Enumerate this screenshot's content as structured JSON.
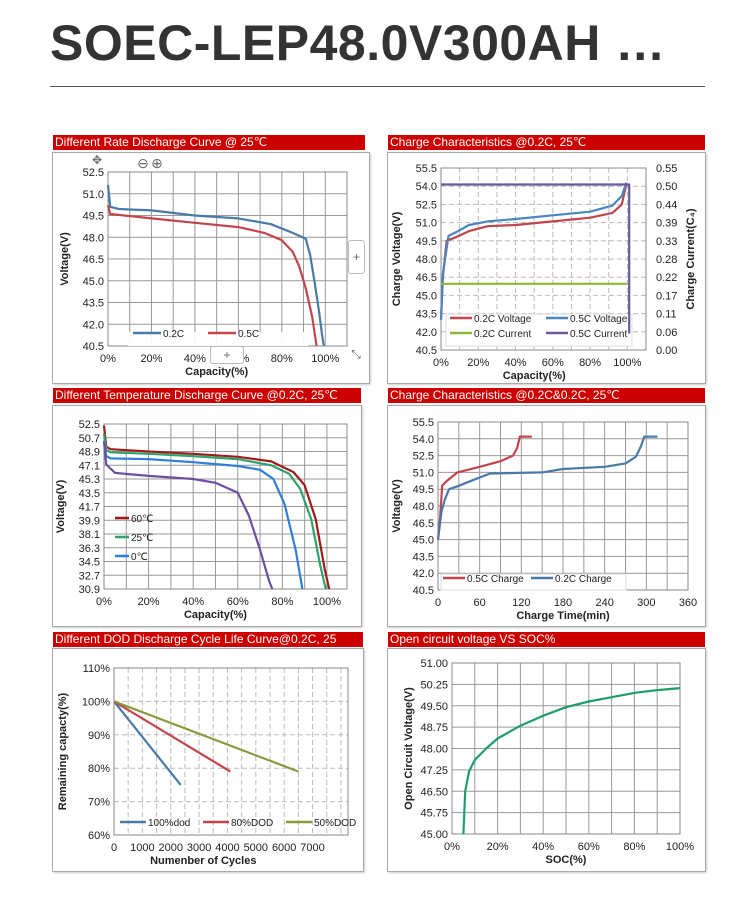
{
  "page_title": "SOEC-LEP48.0V300AH …",
  "panels": [
    {
      "header": "Different Rate Discharge Curve @ 25℃"
    },
    {
      "header": "Charge Characteristics @0.2C, 25℃"
    },
    {
      "header": "Different Temperature Discharge Curve @0.2C, 25℃"
    },
    {
      "header": "Charge Characteristics @0.2C&0.2C, 25℃"
    },
    {
      "header": "Different DOD Discharge Cycle Life Curve@0.2C, 25"
    },
    {
      "header": "Open circuit voltage VS SOC%"
    }
  ],
  "overlay_controls": {
    "zoom_out": "⊖",
    "zoom_in": "⊕",
    "move": "✥",
    "add_right": "+",
    "add_bottom": "+",
    "expand": "⤡"
  },
  "chart_data": [
    {
      "type": "line",
      "title": "Different Rate Discharge Curve @ 25℃",
      "xlabel": "Capacity(%)",
      "ylabel": "Voltage(V)",
      "xlim": [
        0,
        110
      ],
      "ylim": [
        40.5,
        52.5
      ],
      "grid": "solid",
      "xticks": [
        "0%",
        "20%",
        "40%",
        "60%",
        "80%",
        "100%"
      ],
      "xtick_values": [
        0,
        20,
        40,
        60,
        80,
        100
      ],
      "yticks": [
        "40.5",
        "42.0",
        "43.5",
        "45.0",
        "46.5",
        "48.0",
        "49.5",
        "51.0",
        "52.5"
      ],
      "ytick_values": [
        40.5,
        42,
        43.5,
        45,
        46.5,
        48,
        49.5,
        51,
        52.5
      ],
      "legend": "bottom",
      "series": [
        {
          "name": "0.2C",
          "color": "#4a7aa8",
          "points": [
            [
              0,
              51.6
            ],
            [
              1,
              50.1
            ],
            [
              5,
              49.95
            ],
            [
              20,
              49.85
            ],
            [
              40,
              49.5
            ],
            [
              60,
              49.3
            ],
            [
              75,
              48.9
            ],
            [
              85,
              48.3
            ],
            [
              91,
              47.9
            ],
            [
              93,
              46.8
            ],
            [
              95,
              45
            ],
            [
              97,
              43
            ],
            [
              98.5,
              41.3
            ],
            [
              99.3,
              40.5
            ]
          ]
        },
        {
          "name": "0.5C",
          "color": "#c0454d",
          "points": [
            [
              0,
              50.2
            ],
            [
              1,
              49.6
            ],
            [
              20,
              49.3
            ],
            [
              40,
              49.0
            ],
            [
              60,
              48.7
            ],
            [
              72,
              48.3
            ],
            [
              80,
              47.8
            ],
            [
              85,
              47
            ],
            [
              88,
              46
            ],
            [
              91,
              44.5
            ],
            [
              94,
              42.5
            ],
            [
              96,
              40.5
            ]
          ]
        }
      ]
    },
    {
      "type": "line",
      "title": "Charge Characteristics @0.2C, 25℃",
      "xlabel": "Capacity(%)",
      "ylabel": "Charge Voltage(V)",
      "y2label": "Charge Current(C₄)",
      "xlim": [
        0,
        110
      ],
      "ylim": [
        40.5,
        55.5
      ],
      "y2lim": [
        0,
        0.55
      ],
      "grid": "dashed",
      "xticks": [
        "0%",
        "20%",
        "40%",
        "60%",
        "80%",
        "100%"
      ],
      "xtick_values": [
        0,
        20,
        40,
        60,
        80,
        100
      ],
      "yticks": [
        "40.5",
        "42.0",
        "43.5",
        "45.0",
        "46.5",
        "48.0",
        "49.5",
        "51.0",
        "52.5",
        "54.0",
        "55.5"
      ],
      "ytick_values": [
        40.5,
        42,
        43.5,
        45,
        46.5,
        48,
        49.5,
        51,
        52.5,
        54,
        55.5
      ],
      "y2ticks": [
        "0.00",
        "0.06",
        "0.11",
        "0.17",
        "0.22",
        "0.28",
        "0.33",
        "0.39",
        "0.44",
        "0.50",
        "0.55"
      ],
      "y2tick_values": [
        0,
        0.055,
        0.11,
        0.165,
        0.22,
        0.275,
        0.33,
        0.385,
        0.44,
        0.495,
        0.55
      ],
      "legend": "bottom-inside",
      "series": [
        {
          "name": "0.2C Voltage",
          "color": "#c0454d",
          "axis": "left",
          "points": [
            [
              0,
              43
            ],
            [
              1,
              46.5
            ],
            [
              3,
              49.5
            ],
            [
              8,
              49.8
            ],
            [
              15,
              50.3
            ],
            [
              25,
              50.7
            ],
            [
              40,
              50.8
            ],
            [
              60,
              51.1
            ],
            [
              80,
              51.4
            ],
            [
              92,
              51.8
            ],
            [
              97,
              52.5
            ],
            [
              99.5,
              54.2
            ]
          ]
        },
        {
          "name": "0.5C Voltage",
          "color": "#4a86c0",
          "axis": "left",
          "points": [
            [
              0,
              43
            ],
            [
              1,
              46.8
            ],
            [
              4,
              49.9
            ],
            [
              8,
              50.2
            ],
            [
              15,
              50.8
            ],
            [
              25,
              51.1
            ],
            [
              40,
              51.3
            ],
            [
              60,
              51.6
            ],
            [
              80,
              51.9
            ],
            [
              92,
              52.4
            ],
            [
              97,
              53.2
            ],
            [
              99.5,
              54.3
            ]
          ]
        },
        {
          "name": "0.2C Current",
          "color": "#8db83b",
          "axis": "right",
          "points": [
            [
              0,
              0.2
            ],
            [
              100,
              0.2
            ]
          ]
        },
        {
          "name": "0.5C Current",
          "color": "#6a5a9c",
          "axis": "right",
          "points": [
            [
              0,
              0.5
            ],
            [
              101,
              0.5
            ],
            [
              101,
              0.05
            ]
          ]
        }
      ]
    },
    {
      "type": "line",
      "title": "Different Temperature Discharge Curve @0.2C, 25℃",
      "xlabel": "Capacity(%)",
      "ylabel": "Voltage(V)",
      "xlim": [
        0,
        109
      ],
      "ylim": [
        30.9,
        52.5
      ],
      "grid": "solid",
      "xticks": [
        "0%",
        "20%",
        "40%",
        "60%",
        "80%",
        "100%"
      ],
      "xtick_values": [
        0,
        20,
        40,
        60,
        80,
        100
      ],
      "yticks": [
        "30.9",
        "32.7",
        "34.5",
        "36.3",
        "38.1",
        "39.9",
        "41.7",
        "43.5",
        "45.3",
        "47.1",
        "48.9",
        "50.7",
        "52.5"
      ],
      "ytick_values": [
        30.9,
        32.7,
        34.5,
        36.3,
        38.1,
        39.9,
        41.7,
        43.5,
        45.3,
        47.1,
        48.9,
        50.7,
        52.5
      ],
      "legend": "left-inside",
      "series": [
        {
          "name": "60℃",
          "color": "#a01c1c",
          "points": [
            [
              0,
              52.3
            ],
            [
              1,
              49.5
            ],
            [
              3,
              49.2
            ],
            [
              20,
              48.9
            ],
            [
              40,
              48.6
            ],
            [
              60,
              48.2
            ],
            [
              75,
              47.6
            ],
            [
              85,
              46.2
            ],
            [
              90,
              44.5
            ],
            [
              95,
              40
            ],
            [
              99,
              33.5
            ],
            [
              101,
              30.9
            ]
          ]
        },
        {
          "name": "25℃",
          "color": "#2ea36a",
          "points": [
            [
              0,
              51.2
            ],
            [
              1,
              49.1
            ],
            [
              3,
              48.8
            ],
            [
              20,
              48.6
            ],
            [
              40,
              48.3
            ],
            [
              60,
              47.9
            ],
            [
              75,
              47.1
            ],
            [
              83,
              46
            ],
            [
              88,
              44
            ],
            [
              93,
              40
            ],
            [
              97,
              34
            ],
            [
              99.5,
              30.9
            ]
          ]
        },
        {
          "name": "0℃",
          "color": "#2f7ed8",
          "points": [
            [
              0,
              50.3
            ],
            [
              1,
              48.3
            ],
            [
              3,
              48.0
            ],
            [
              20,
              47.9
            ],
            [
              40,
              47.5
            ],
            [
              60,
              47.0
            ],
            [
              70,
              46.5
            ],
            [
              76,
              45.3
            ],
            [
              81,
              42
            ],
            [
              86,
              36
            ],
            [
              89,
              30.9
            ]
          ]
        },
        {
          "color": "#6d4fa0",
          "points": [
            [
              0,
              50.2
            ],
            [
              1,
              47.2
            ],
            [
              5,
              46.1
            ],
            [
              20,
              45.7
            ],
            [
              40,
              45.3
            ],
            [
              50,
              44.8
            ],
            [
              60,
              43.5
            ],
            [
              65,
              40.5
            ],
            [
              70,
              36
            ],
            [
              74,
              32
            ],
            [
              75.5,
              30.9
            ]
          ]
        }
      ]
    },
    {
      "type": "line",
      "title": "Charge Characteristics @0.2C&0.2C, 25℃",
      "xlabel": "Charge Time(min)",
      "ylabel": "Voltage(V)",
      "xlim": [
        0,
        360
      ],
      "ylim": [
        40.5,
        55.5
      ],
      "grid": "solid",
      "xticks": [
        "0",
        "60",
        "120",
        "180",
        "240",
        "300",
        "360"
      ],
      "xtick_values": [
        0,
        60,
        120,
        180,
        240,
        300,
        360
      ],
      "yticks": [
        "40.5",
        "42.0",
        "43.5",
        "45.0",
        "46.5",
        "48.0",
        "49.5",
        "51.0",
        "52.5",
        "54.0",
        "55.5"
      ],
      "ytick_values": [
        40.5,
        42,
        43.5,
        45,
        46.5,
        48,
        49.5,
        51,
        52.5,
        54,
        55.5
      ],
      "legend": "bottom-inside",
      "series": [
        {
          "name": "0.5C Charge",
          "color": "#c0454d",
          "points": [
            [
              0,
              45
            ],
            [
              3,
              47
            ],
            [
              6,
              49.8
            ],
            [
              12,
              50.2
            ],
            [
              28,
              51
            ],
            [
              60,
              51.5
            ],
            [
              90,
              52
            ],
            [
              108,
              52.5
            ],
            [
              114,
              53.2
            ],
            [
              118,
              54.2
            ],
            [
              135,
              54.2
            ]
          ]
        },
        {
          "name": "0.2C Charge",
          "color": "#4a7aa8",
          "points": [
            [
              0,
              45
            ],
            [
              5,
              47.5
            ],
            [
              10,
              48.6
            ],
            [
              16,
              49.5
            ],
            [
              30,
              49.8
            ],
            [
              50,
              50.3
            ],
            [
              75,
              50.9
            ],
            [
              150,
              51.0
            ],
            [
              180,
              51.3
            ],
            [
              240,
              51.5
            ],
            [
              270,
              51.8
            ],
            [
              285,
              52.4
            ],
            [
              292,
              53.3
            ],
            [
              297,
              54.2
            ],
            [
              316,
              54.2
            ]
          ]
        }
      ]
    },
    {
      "type": "line",
      "title": "Different DOD Discharge Cycle Life Curve@0.2C, 25",
      "xlabel": "Numenber of Cycles",
      "ylabel": "Remaining capacty(%)",
      "xlim": [
        0,
        8250
      ],
      "ylim": [
        60,
        110
      ],
      "grid": "dashed",
      "xticks": [
        "0",
        "1000",
        "2000",
        "3000",
        "4000",
        "5000",
        "6000",
        "7000"
      ],
      "xtick_values": [
        0,
        1000,
        2000,
        3000,
        4000,
        5000,
        6000,
        7000
      ],
      "yticks": [
        "60%",
        "70%",
        "80%",
        "90%",
        "100%",
        "110%"
      ],
      "ytick_values": [
        60,
        70,
        80,
        90,
        100,
        110
      ],
      "legend": "bottom-inside",
      "series": [
        {
          "name": "100%dod",
          "color": "#4a7aa8",
          "points": [
            [
              0,
              100
            ],
            [
              2350,
              75
            ]
          ]
        },
        {
          "name": "80%DOD",
          "color": "#c0454d",
          "points": [
            [
              0,
              100
            ],
            [
              4100,
              79
            ]
          ]
        },
        {
          "name": "50%DOD",
          "color": "#8a9a3b",
          "points": [
            [
              0,
              100
            ],
            [
              6500,
              79
            ]
          ]
        }
      ]
    },
    {
      "type": "line",
      "title": "Open circuit voltage VS SOC%",
      "xlabel": "SOC(%)",
      "ylabel": "Open Circuit Voltage(V)",
      "xlim": [
        0,
        100
      ],
      "ylim": [
        45,
        51
      ],
      "grid": "solid",
      "xticks": [
        "0%",
        "20%",
        "40%",
        "60%",
        "80%",
        "100%"
      ],
      "xtick_values": [
        0,
        20,
        40,
        60,
        80,
        100
      ],
      "yticks": [
        "45.00",
        "45.75",
        "46.50",
        "47.25",
        "48.00",
        "48.75",
        "49.50",
        "50.25",
        "51.00"
      ],
      "ytick_values": [
        45,
        45.75,
        46.5,
        47.25,
        48,
        48.75,
        49.5,
        50.25,
        51
      ],
      "legend": "none",
      "series": [
        {
          "color": "#1e9e6a",
          "points": [
            [
              5,
              45
            ],
            [
              5.8,
              46.5
            ],
            [
              7.5,
              47.2
            ],
            [
              10,
              47.6
            ],
            [
              15,
              48.0
            ],
            [
              20,
              48.35
            ],
            [
              30,
              48.8
            ],
            [
              40,
              49.15
            ],
            [
              50,
              49.45
            ],
            [
              60,
              49.65
            ],
            [
              70,
              49.8
            ],
            [
              80,
              49.95
            ],
            [
              90,
              50.05
            ],
            [
              100,
              50.12
            ]
          ]
        }
      ]
    }
  ]
}
